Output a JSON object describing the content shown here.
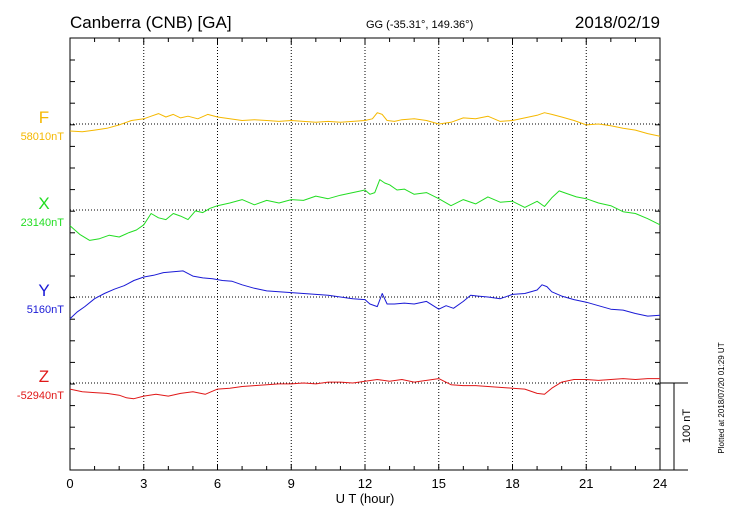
{
  "header": {
    "station": "Canberra (CNB)  [GA]",
    "coords": "GG (-35.31°, 149.36°)",
    "date": "2018/02/19"
  },
  "plotted_note": "Plotted at 2018/07/20 01:29 UT",
  "scale_bar_label": "100 nT",
  "chart_data": {
    "type": "line",
    "xlabel": "U T (hour)",
    "xlim": [
      0,
      24
    ],
    "xticks": [
      0,
      3,
      6,
      9,
      12,
      15,
      18,
      21,
      24
    ],
    "grid": true,
    "scale_bar_nT": 100,
    "series": [
      {
        "name": "F",
        "baseline_label": "58010nT",
        "baseline_nT": 58010,
        "color": "#f5b800",
        "x": [
          0,
          0.5,
          1,
          1.5,
          2,
          2.5,
          3,
          3.3,
          3.6,
          3.9,
          4.2,
          4.5,
          4.8,
          5.2,
          5.6,
          6,
          6.5,
          7,
          7.5,
          8,
          8.5,
          9,
          9.5,
          10,
          10.5,
          11,
          11.5,
          12,
          12.3,
          12.5,
          12.7,
          12.9,
          13.2,
          13.5,
          14,
          14.5,
          15,
          15.5,
          16,
          16.5,
          17,
          17.5,
          18,
          18.5,
          19,
          19.3,
          19.6,
          20,
          20.5,
          21,
          21.5,
          22,
          22.5,
          23,
          23.5,
          24
        ],
        "values": [
          58002,
          58001,
          58003,
          58005,
          58009,
          58014,
          58016,
          58019,
          58022,
          58018,
          58021,
          58017,
          58019,
          58016,
          58021,
          58018,
          58016,
          58014,
          58015,
          58014,
          58013,
          58014,
          58013,
          58012,
          58013,
          58012,
          58013,
          58014,
          58016,
          58023,
          58021,
          58014,
          58013,
          58015,
          58016,
          58014,
          58010,
          58012,
          58017,
          58016,
          58019,
          58013,
          58014,
          58017,
          58020,
          58023,
          58021,
          58018,
          58014,
          58009,
          58010,
          58008,
          58005,
          58003,
          57999,
          57996
        ]
      },
      {
        "name": "X",
        "baseline_label": "23140nT",
        "baseline_nT": 23140,
        "color": "#22dd22",
        "x": [
          0,
          0.4,
          0.8,
          1.2,
          1.6,
          2,
          2.4,
          2.7,
          3,
          3.3,
          3.6,
          3.9,
          4.2,
          4.5,
          4.8,
          5.1,
          5.4,
          5.7,
          6,
          6.5,
          7,
          7.5,
          8,
          8.5,
          9,
          9.5,
          10,
          10.5,
          11,
          11.5,
          12,
          12.2,
          12.4,
          12.6,
          12.8,
          13,
          13.3,
          13.6,
          14,
          14.5,
          15,
          15.5,
          16,
          16.5,
          17,
          17.5,
          18,
          18.5,
          19,
          19.3,
          19.6,
          19.9,
          20.2,
          20.6,
          21,
          21.5,
          22,
          22.5,
          23,
          23.5,
          24
        ],
        "values": [
          23122,
          23112,
          23105,
          23107,
          23111,
          23109,
          23114,
          23117,
          23123,
          23136,
          23131,
          23129,
          23136,
          23133,
          23129,
          23139,
          23137,
          23142,
          23145,
          23148,
          23152,
          23146,
          23151,
          23148,
          23152,
          23151,
          23156,
          23153,
          23157,
          23160,
          23163,
          23158,
          23160,
          23175,
          23171,
          23169,
          23163,
          23164,
          23158,
          23160,
          23153,
          23145,
          23152,
          23147,
          23155,
          23149,
          23150,
          23143,
          23150,
          23144,
          23154,
          23162,
          23159,
          23155,
          23153,
          23148,
          23145,
          23138,
          23136,
          23130,
          23123
        ]
      },
      {
        "name": "Y",
        "baseline_label": "5160nT",
        "baseline_nT": 5160,
        "color": "#1a1ad6",
        "x": [
          0,
          0.3,
          0.6,
          1,
          1.4,
          1.8,
          2.2,
          2.6,
          3,
          3.4,
          3.8,
          4.2,
          4.6,
          5,
          5.4,
          5.8,
          6.2,
          6.6,
          7,
          7.5,
          8,
          8.5,
          9,
          9.5,
          10,
          10.5,
          11,
          11.5,
          12,
          12.2,
          12.5,
          12.7,
          12.9,
          13.2,
          13.6,
          14,
          14.5,
          15,
          15.3,
          15.6,
          16,
          16.3,
          16.6,
          17,
          17.5,
          18,
          18.5,
          19,
          19.2,
          19.4,
          19.6,
          20,
          20.5,
          21,
          21.5,
          22,
          22.5,
          23,
          23.5,
          24
        ],
        "values": [
          5135,
          5143,
          5149,
          5158,
          5164,
          5169,
          5173,
          5179,
          5183,
          5185,
          5188,
          5189,
          5190,
          5184,
          5182,
          5181,
          5179,
          5178,
          5174,
          5170,
          5167,
          5166,
          5165,
          5164,
          5163,
          5162,
          5160,
          5158,
          5157,
          5152,
          5149,
          5164,
          5152,
          5152,
          5153,
          5152,
          5155,
          5146,
          5150,
          5147,
          5155,
          5162,
          5161,
          5160,
          5158,
          5163,
          5164,
          5168,
          5174,
          5172,
          5166,
          5161,
          5157,
          5154,
          5150,
          5146,
          5145,
          5141,
          5138,
          5139
        ]
      },
      {
        "name": "Z",
        "baseline_label": "-52940nT",
        "baseline_nT": -52940,
        "color": "#e01818",
        "x": [
          0,
          0.5,
          1,
          1.5,
          2,
          2.3,
          2.6,
          3,
          3.5,
          4,
          4.5,
          5,
          5.5,
          6,
          6.5,
          7,
          7.5,
          8,
          8.5,
          9,
          9.5,
          10,
          10.5,
          11,
          11.5,
          12,
          12.5,
          13,
          13.5,
          14,
          14.5,
          15,
          15.5,
          16,
          16.5,
          17,
          17.5,
          18,
          18.5,
          19,
          19.3,
          19.6,
          20,
          20.5,
          21,
          21.5,
          22,
          22.5,
          23,
          23.5,
          24
        ],
        "values": [
          -52947,
          -52950,
          -52951,
          -52952,
          -52954,
          -52957,
          -52958,
          -52955,
          -52953,
          -52955,
          -52952,
          -52950,
          -52953,
          -52947,
          -52946,
          -52944,
          -52943,
          -52942,
          -52941,
          -52941,
          -52940,
          -52941,
          -52939,
          -52939,
          -52940,
          -52938,
          -52936,
          -52938,
          -52936,
          -52939,
          -52937,
          -52935,
          -52942,
          -52943,
          -52943,
          -52944,
          -52945,
          -52946,
          -52947,
          -52952,
          -52953,
          -52946,
          -52939,
          -52936,
          -52936,
          -52937,
          -52936,
          -52935,
          -52936,
          -52935,
          -52935
        ]
      }
    ]
  }
}
